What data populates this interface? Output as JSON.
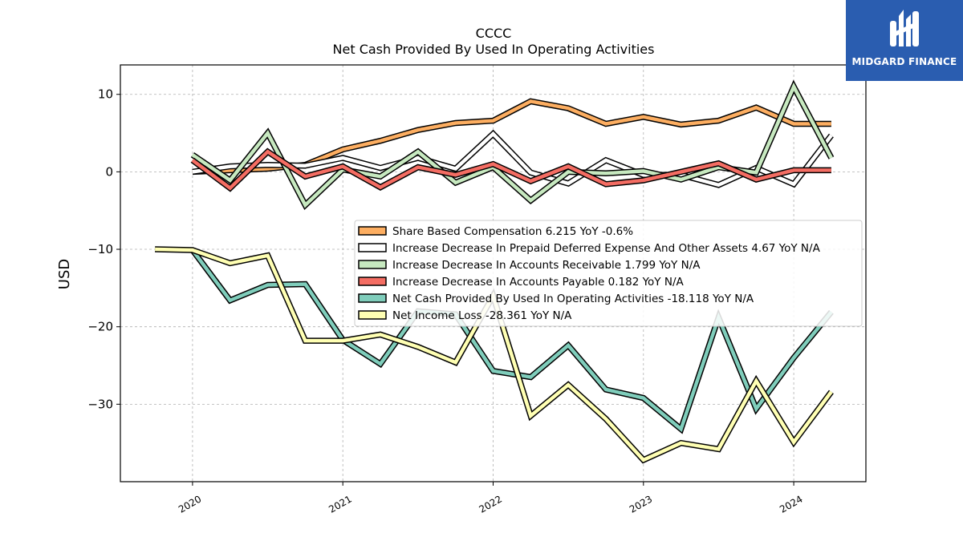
{
  "brand": {
    "name": "MIDGARD FINANCE",
    "color": "#2a5db0"
  },
  "chart_data": {
    "type": "line",
    "title": "CCCC",
    "subtitle": "Net Cash Provided By Used In Operating Activities",
    "ylabel": "USD",
    "xlabel": "",
    "ylim": [
      -40.0,
      13.8
    ],
    "xlim": [
      2019.52,
      2020.0,
      2021.0,
      2022.0,
      2023.0,
      2024.0,
      2024.48
    ],
    "x_ticks": [
      "2020",
      "2021",
      "2022",
      "2023",
      "2024"
    ],
    "y_ticks": [
      "10",
      "0",
      "−10",
      "−20",
      "−30"
    ],
    "y_tick_values": [
      10,
      0,
      -10,
      -20,
      -30
    ],
    "grid": true,
    "legend_position": "center-right",
    "series": [
      {
        "name": "Share Based Compensation  6.215 YoY -0.6%",
        "color": "#fdae61",
        "x": [
          "2020-01-01",
          "2020-04-01",
          "2020-07-01",
          "2020-10-01",
          "2021-01-01",
          "2021-04-01",
          "2021-07-01",
          "2021-10-01",
          "2022-01-01",
          "2022-04-01",
          "2022-07-01",
          "2022-10-01",
          "2023-01-01",
          "2023-04-01",
          "2023-07-01",
          "2023-10-01",
          "2024-01-01",
          "2024-04-01"
        ],
        "values": [
          0.0,
          0.2,
          0.4,
          0.9,
          2.9,
          4.0,
          5.4,
          6.3,
          6.6,
          9.1,
          8.2,
          6.2,
          7.1,
          6.1,
          6.6,
          8.3,
          6.2,
          6.2
        ]
      },
      {
        "name": "Increase Decrease In Prepaid Deferred Expense And Other Assets  4.67 YoY N/A",
        "color": "#ffffff",
        "x": [
          "2020-01-01",
          "2020-04-01",
          "2020-07-01",
          "2020-10-01",
          "2021-01-01",
          "2021-04-01",
          "2021-07-01",
          "2021-10-01",
          "2022-01-01",
          "2022-04-01",
          "2022-07-01",
          "2022-10-01",
          "2023-01-01",
          "2023-04-01",
          "2023-07-01",
          "2023-10-01",
          "2024-01-01",
          "2024-04-01"
        ],
        "values": [
          0.0,
          0.7,
          0.9,
          0.8,
          1.8,
          0.5,
          1.8,
          0.4,
          4.9,
          -0.1,
          -1.5,
          1.5,
          -0.4,
          -0.4,
          -1.7,
          0.5,
          -1.6,
          4.7
        ]
      },
      {
        "name": "Increase Decrease In Accounts Receivable  1.799 YoY N/A",
        "color": "#c7e9c0",
        "x": [
          "2020-01-01",
          "2020-04-01",
          "2020-07-01",
          "2020-10-01",
          "2021-01-01",
          "2021-04-01",
          "2021-07-01",
          "2021-10-01",
          "2022-01-01",
          "2022-04-01",
          "2022-07-01",
          "2022-10-01",
          "2023-01-01",
          "2023-04-01",
          "2023-07-01",
          "2023-10-01",
          "2024-01-01",
          "2024-04-01"
        ],
        "values": [
          2.2,
          -1.1,
          5.0,
          -4.3,
          0.3,
          -0.6,
          2.6,
          -1.4,
          0.6,
          -3.7,
          0.0,
          -0.2,
          0.1,
          -1.0,
          0.6,
          -0.1,
          11.0,
          1.8
        ]
      },
      {
        "name": "Increase Decrease In Accounts Payable  0.182 YoY N/A",
        "color": "#f46d63",
        "x": [
          "2020-01-01",
          "2020-04-01",
          "2020-07-01",
          "2020-10-01",
          "2021-01-01",
          "2021-04-01",
          "2021-07-01",
          "2021-10-01",
          "2022-01-01",
          "2022-04-01",
          "2022-07-01",
          "2022-10-01",
          "2023-01-01",
          "2023-04-01",
          "2023-07-01",
          "2023-10-01",
          "2024-01-01",
          "2024-04-01"
        ],
        "values": [
          1.5,
          -2.1,
          2.6,
          -0.6,
          0.7,
          -2.0,
          0.6,
          -0.4,
          1.0,
          -1.2,
          0.7,
          -1.6,
          -1.1,
          0.0,
          1.1,
          -1.0,
          0.2,
          0.2
        ]
      },
      {
        "name": "Net Cash Provided By Used In Operating Activities  -18.118 YoY N/A",
        "color": "#7fcdbb",
        "x": [
          "2020-01-01",
          "2020-04-01",
          "2020-07-01",
          "2020-10-01",
          "2021-01-01",
          "2021-04-01",
          "2021-07-01",
          "2021-10-01",
          "2022-01-01",
          "2022-04-01",
          "2022-07-01",
          "2022-10-01",
          "2023-01-01",
          "2023-04-01",
          "2023-07-01",
          "2023-10-01",
          "2024-01-01",
          "2024-04-01"
        ],
        "values": [
          -10.1,
          -16.6,
          -14.6,
          -14.5,
          -21.7,
          -24.8,
          -18.0,
          -18.4,
          -25.7,
          -26.5,
          -22.4,
          -28.1,
          -29.2,
          -33.2,
          -18.8,
          -30.6,
          -24.0,
          -18.1
        ]
      },
      {
        "name": "Net Income Loss  -28.361 YoY N/A",
        "color": "#ffffb3",
        "x": [
          "2019-10-01",
          "2020-01-01",
          "2020-04-01",
          "2020-07-01",
          "2020-10-01",
          "2021-01-01",
          "2021-04-01",
          "2021-07-01",
          "2021-10-01",
          "2022-01-01",
          "2022-04-01",
          "2022-07-01",
          "2022-10-01",
          "2023-01-01",
          "2023-04-01",
          "2023-07-01",
          "2023-10-01",
          "2024-01-01",
          "2024-04-01"
        ],
        "values": [
          -10.0,
          -10.1,
          -11.8,
          -10.8,
          -21.8,
          -21.8,
          -21.0,
          -22.6,
          -24.6,
          -16.0,
          -31.5,
          -27.5,
          -31.9,
          -37.2,
          -35.0,
          -35.8,
          -27.0,
          -34.9,
          -28.4
        ]
      }
    ]
  }
}
